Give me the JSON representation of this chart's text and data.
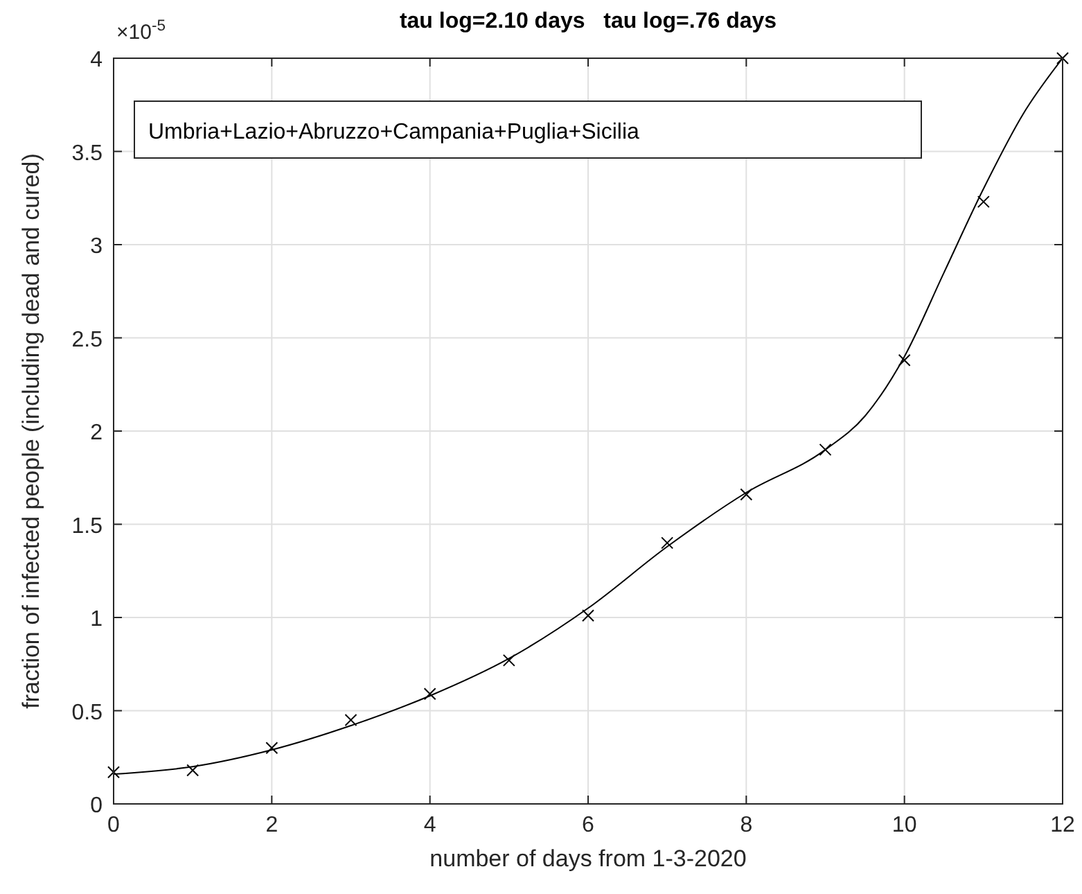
{
  "chart_data": {
    "type": "scatter",
    "title": "tau log=2.10 days   tau log=.76 days",
    "xlabel": "number of days from 1-3-2020",
    "ylabel": "fraction of infected people (including dead and cured)",
    "series": [
      {
        "color": "#000000",
        "marker": "cross",
        "x": [
          0,
          1,
          2,
          3,
          4,
          5,
          6,
          7,
          8,
          9,
          10,
          11,
          12
        ],
        "values": [
          0.17,
          0.18,
          0.3,
          0.45,
          0.59,
          0.77,
          1.01,
          1.4,
          1.66,
          1.9,
          2.38,
          3.23,
          4.0
        ]
      },
      {
        "type": "line",
        "color": "#000000",
        "marker": "none",
        "x": [
          0,
          1,
          2,
          3,
          4,
          5,
          6,
          7,
          8,
          9,
          9.5,
          10,
          10.5,
          11,
          11.5,
          12
        ],
        "values": [
          0.16,
          0.2,
          0.29,
          0.42,
          0.58,
          0.78,
          1.05,
          1.38,
          1.67,
          1.9,
          2.08,
          2.4,
          2.85,
          3.3,
          3.7,
          4.0
        ]
      }
    ],
    "xlim": [
      0,
      12
    ],
    "xticks": [
      0,
      2,
      4,
      6,
      8,
      10,
      12
    ],
    "ylim": [
      0,
      4
    ],
    "yticks": [
      0,
      0.5,
      1,
      1.5,
      2,
      2.5,
      3,
      3.5,
      4
    ],
    "grid": true,
    "annotations": [
      "×10$^{-5}$",
      "Umbria+Lazio+Abruzzo+Campania+Puglia+Sicilia"
    ]
  }
}
